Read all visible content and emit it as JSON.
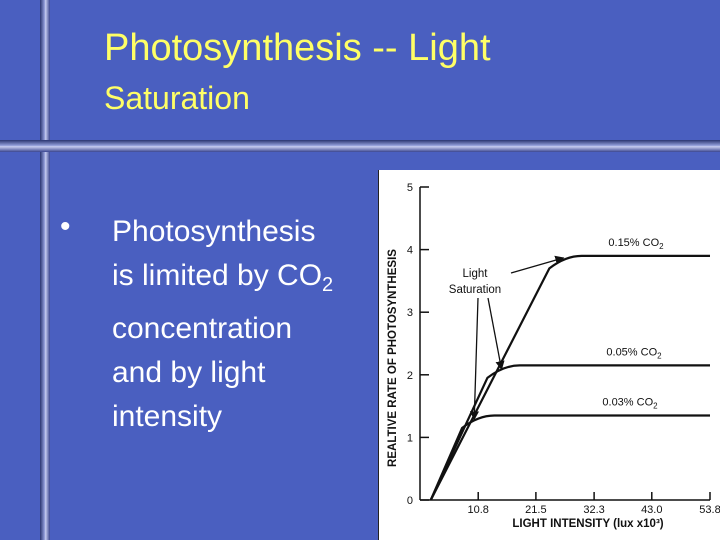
{
  "slide": {
    "title_line1": "Photosynthesis -- Light",
    "title_line2": "Saturation",
    "bullet_char": "•",
    "body_lines": [
      "Photosynthesis",
      "is limited by CO",
      "concentration",
      "and by light",
      "intensity"
    ],
    "body_sub": "2"
  },
  "colors": {
    "background": "#4a5fc0",
    "title": "#ffff66",
    "body": "#ffffff"
  },
  "chart_data": {
    "type": "line",
    "ylabel": "REALTIVE RATE OF PHOTOSYNTHESIS",
    "xlabel": "LIGHT INTENSITY (lux x10³)",
    "x_ticks": [
      "10.8",
      "21.5",
      "32.3",
      "43.0",
      "53.8"
    ],
    "y_ticks": [
      "0",
      "1",
      "2",
      "3",
      "4",
      "5"
    ],
    "ylim": [
      0,
      5
    ],
    "annotation": "Light Saturation",
    "series": [
      {
        "name": "0.15% CO",
        "name_sub": "2",
        "saturation_rate": 3.9,
        "saturation_intensity": 27
      },
      {
        "name": "0.05% CO",
        "name_sub": "2",
        "saturation_rate": 2.15,
        "saturation_intensity": 15.5
      },
      {
        "name": "0.03% CO",
        "name_sub": "2",
        "saturation_rate": 1.35,
        "saturation_intensity": 10.8
      }
    ]
  }
}
